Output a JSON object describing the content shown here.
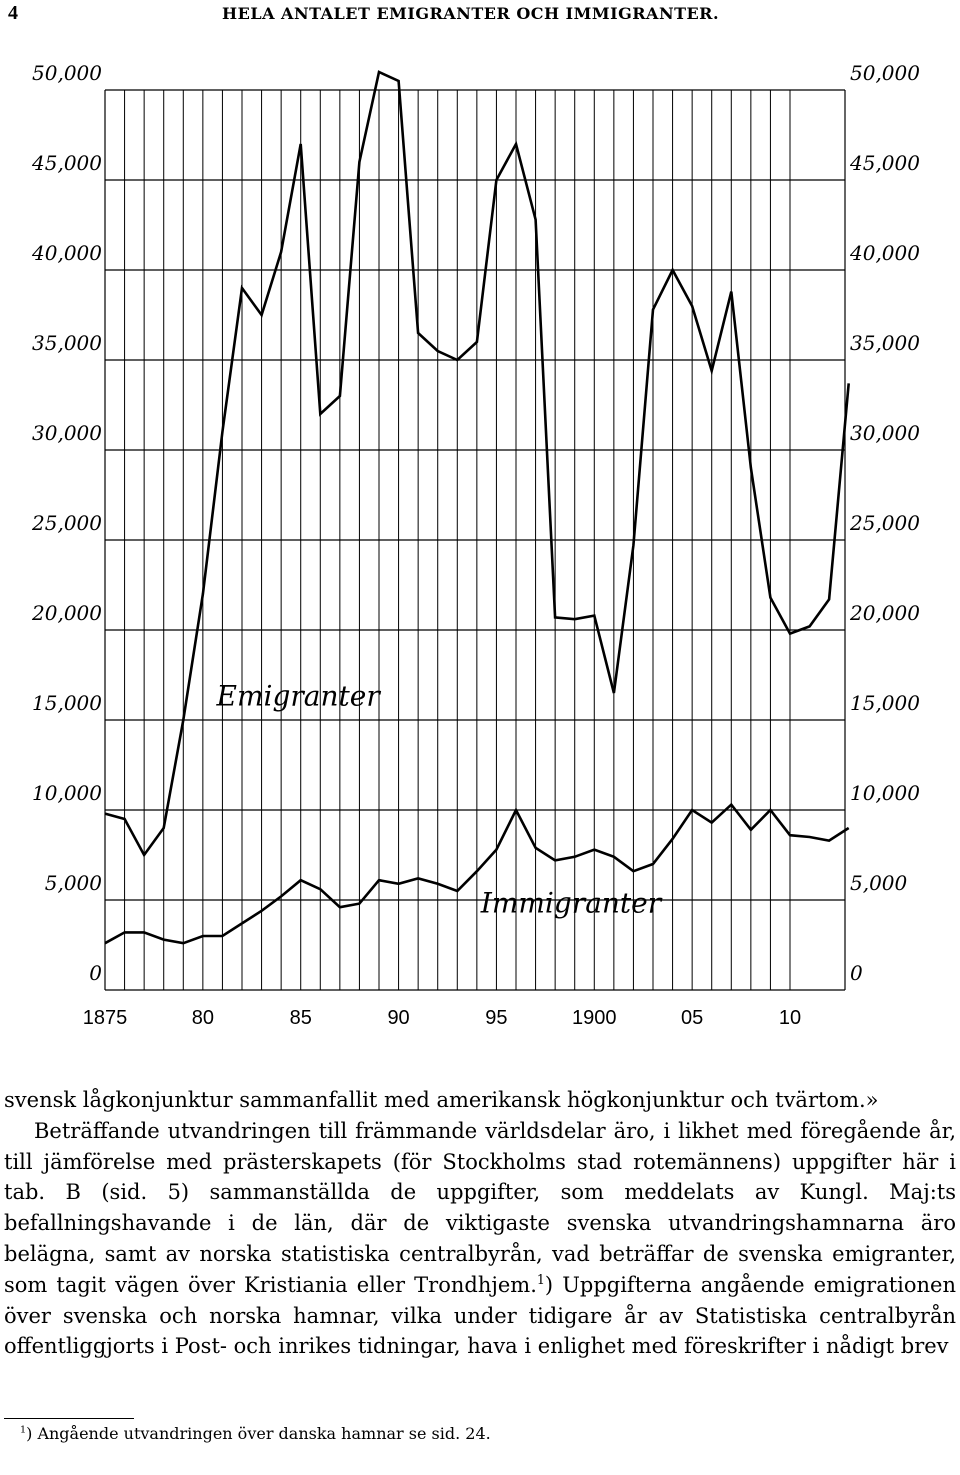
{
  "header": {
    "page_number": "4",
    "running_head": "HELA ANTALET EMIGRANTER OCH IMMIGRANTER."
  },
  "chart_data": {
    "type": "line",
    "ylim": [
      0,
      50000
    ],
    "y_ticks": [
      0,
      5000,
      10000,
      15000,
      20000,
      25000,
      30000,
      35000,
      40000,
      45000,
      50000
    ],
    "y_tick_labels": [
      "0",
      "5,000",
      "10,000",
      "15,000",
      "20,000",
      "25,000",
      "30,000",
      "35,000",
      "40,000",
      "45,000",
      "50,000"
    ],
    "x_ticks": [
      1875,
      1880,
      1885,
      1890,
      1895,
      1900,
      1905,
      1910
    ],
    "x_tick_labels": [
      "1875",
      "80",
      "85",
      "90",
      "95",
      "1900",
      "05",
      "10"
    ],
    "x": [
      1875,
      1876,
      1877,
      1878,
      1879,
      1880,
      1881,
      1882,
      1883,
      1884,
      1885,
      1886,
      1887,
      1888,
      1889,
      1890,
      1891,
      1892,
      1893,
      1894,
      1895,
      1896,
      1897,
      1898,
      1899,
      1900,
      1901,
      1902,
      1903,
      1904,
      1905,
      1906,
      1907,
      1908,
      1909,
      1910,
      1911,
      1912,
      1913
    ],
    "series": [
      {
        "name": "Emigranter",
        "values": [
          9800,
          9500,
          7500,
          9000,
          15000,
          22000,
          31000,
          39000,
          37500,
          41000,
          47000,
          32000,
          33000,
          46000,
          51000,
          50500,
          36500,
          35500,
          35000,
          36000,
          45000,
          47000,
          42800,
          20700,
          20600,
          20800,
          16500,
          24700,
          37800,
          40000,
          38000,
          34400,
          38800,
          29000,
          21800,
          19800,
          20200,
          21700,
          33700
        ]
      },
      {
        "name": "Immigranter",
        "values": [
          2600,
          3200,
          3200,
          2800,
          2600,
          3000,
          3000,
          3700,
          4400,
          5200,
          6100,
          5600,
          4600,
          4800,
          6100,
          5900,
          6200,
          5900,
          5500,
          6600,
          7800,
          10000,
          7900,
          7200,
          7400,
          7800,
          7400,
          6600,
          7000,
          8400,
          10000,
          9300,
          10300,
          8900,
          10000,
          8600,
          8500,
          8300,
          9000
        ]
      }
    ],
    "series_labels": [
      "Emigranter",
      "Immigranter"
    ]
  },
  "body": {
    "paragraph1": "svensk lågkonjunktur sammanfallit med amerikansk högkonjunktur och tvärtom.»",
    "paragraph2_part1": "Beträffande utvandringen till främmande världsdelar äro, i likhet med föregående år, till jämförelse med prästerskapets (för Stockholms stad rotemännens) uppgifter här i tab. B (sid. 5) sammanställda de uppgifter, som meddelats av Kungl. Maj:ts befallningshavande i de län, där de viktigaste svenska utvandringshamnarna äro belägna, samt av norska statistiska centralbyrån, vad beträffar de svenska emigranter, som tagit vägen över Kristiania eller Trondhjem.",
    "footnote_ref": "1",
    "paragraph2_part2": ") Uppgifterna angående emigrationen över svenska och norska hamnar, vilka under tidigare år av Statistiska centralbyrån offentliggjorts i Post- och inrikes tidningar, hava i enlighet med föreskrifter i nådigt brev"
  },
  "footnote": {
    "marker": "1",
    "text": ") Angående utvandringen över danska hamnar se sid. 24."
  }
}
